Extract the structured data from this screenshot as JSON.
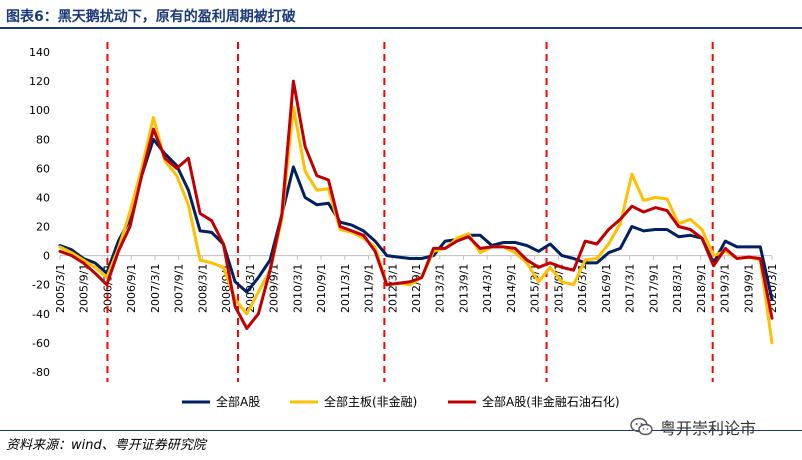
{
  "title": "图表6：黑天鹅扰动下，原有的盈利周期被打破",
  "source": "资料来源：wind、粤开证券研究院",
  "watermark": "粤开崇利论市",
  "colors": {
    "navy": "#002060",
    "gold": "#FFC000",
    "red": "#C00000",
    "marker": "#FF0000"
  },
  "chart_data": {
    "type": "line",
    "ylim": [
      -80,
      140
    ],
    "yticks": [
      -80,
      -60,
      -40,
      -20,
      0,
      20,
      40,
      60,
      80,
      100,
      120,
      140
    ],
    "x_start": "2005/3/1",
    "x_end": "2020/3/1",
    "xtick_labels": [
      "2005/3/1",
      "2005/9/1",
      "2006/3/1",
      "2006/9/1",
      "2007/3/1",
      "2007/9/1",
      "2008/3/1",
      "2008/9/1",
      "2009/3/1",
      "2009/9/1",
      "2010/3/1",
      "2010/9/1",
      "2011/3/1",
      "2011/9/1",
      "2012/3/1",
      "2012/9/1",
      "2013/3/1",
      "2013/9/1",
      "2014/3/1",
      "2014/9/1",
      "2015/3/1",
      "2015/9/1",
      "2016/3/1",
      "2016/9/1",
      "2017/3/1",
      "2017/9/1",
      "2018/3/1",
      "2018/9/1",
      "2019/3/1",
      "2019/9/1",
      "2020/3/1"
    ],
    "legend_position": "bottom",
    "series": [
      {
        "name": "全部A股",
        "color": "#002060",
        "values": [
          7,
          4,
          -2,
          -5,
          -12,
          10,
          25,
          55,
          80,
          70,
          62,
          45,
          17,
          16,
          8,
          -18,
          -25,
          -15,
          -3,
          28,
          61,
          40,
          35,
          36,
          23,
          21,
          17,
          10,
          0,
          -1,
          -2,
          -2,
          0,
          10,
          11,
          14,
          14,
          7,
          9,
          9,
          7,
          3,
          8,
          0,
          -2,
          -5,
          -5,
          2,
          5,
          20,
          17,
          18,
          18,
          13,
          14,
          12,
          -5,
          10,
          6,
          6,
          6,
          -30
        ]
      },
      {
        "name": "全部主板(非金融)",
        "color": "#FFC000",
        "values": [
          6,
          2,
          -3,
          -8,
          -15,
          5,
          30,
          60,
          95,
          65,
          55,
          35,
          -3,
          -5,
          -8,
          -30,
          -40,
          -25,
          -10,
          25,
          102,
          58,
          45,
          46,
          18,
          16,
          12,
          6,
          -20,
          -19,
          -20,
          -15,
          3,
          5,
          12,
          15,
          2,
          6,
          6,
          2,
          -5,
          -18,
          -8,
          -18,
          -20,
          -3,
          -2,
          8,
          22,
          56,
          38,
          40,
          39,
          22,
          25,
          18,
          0,
          3,
          -2,
          -1,
          -3,
          -60
        ]
      },
      {
        "name": "全部A股(非金融石油石化)",
        "color": "#C00000",
        "values": [
          3,
          0,
          -5,
          -12,
          -20,
          3,
          20,
          55,
          87,
          67,
          60,
          67,
          29,
          24,
          8,
          -35,
          -50,
          -40,
          -10,
          28,
          120,
          75,
          55,
          52,
          20,
          17,
          14,
          3,
          -20,
          -19,
          -18,
          -15,
          5,
          5,
          10,
          13,
          5,
          6,
          6,
          5,
          -3,
          -8,
          -5,
          -8,
          -10,
          10,
          8,
          18,
          25,
          34,
          30,
          33,
          31,
          20,
          18,
          12,
          -7,
          5,
          -2,
          -1,
          -2,
          -43
        ]
      }
    ],
    "markers": [
      "2006/3/1",
      "2008/12/1",
      "2012/1/1",
      "2015/6/1",
      "2018/12/1"
    ]
  }
}
